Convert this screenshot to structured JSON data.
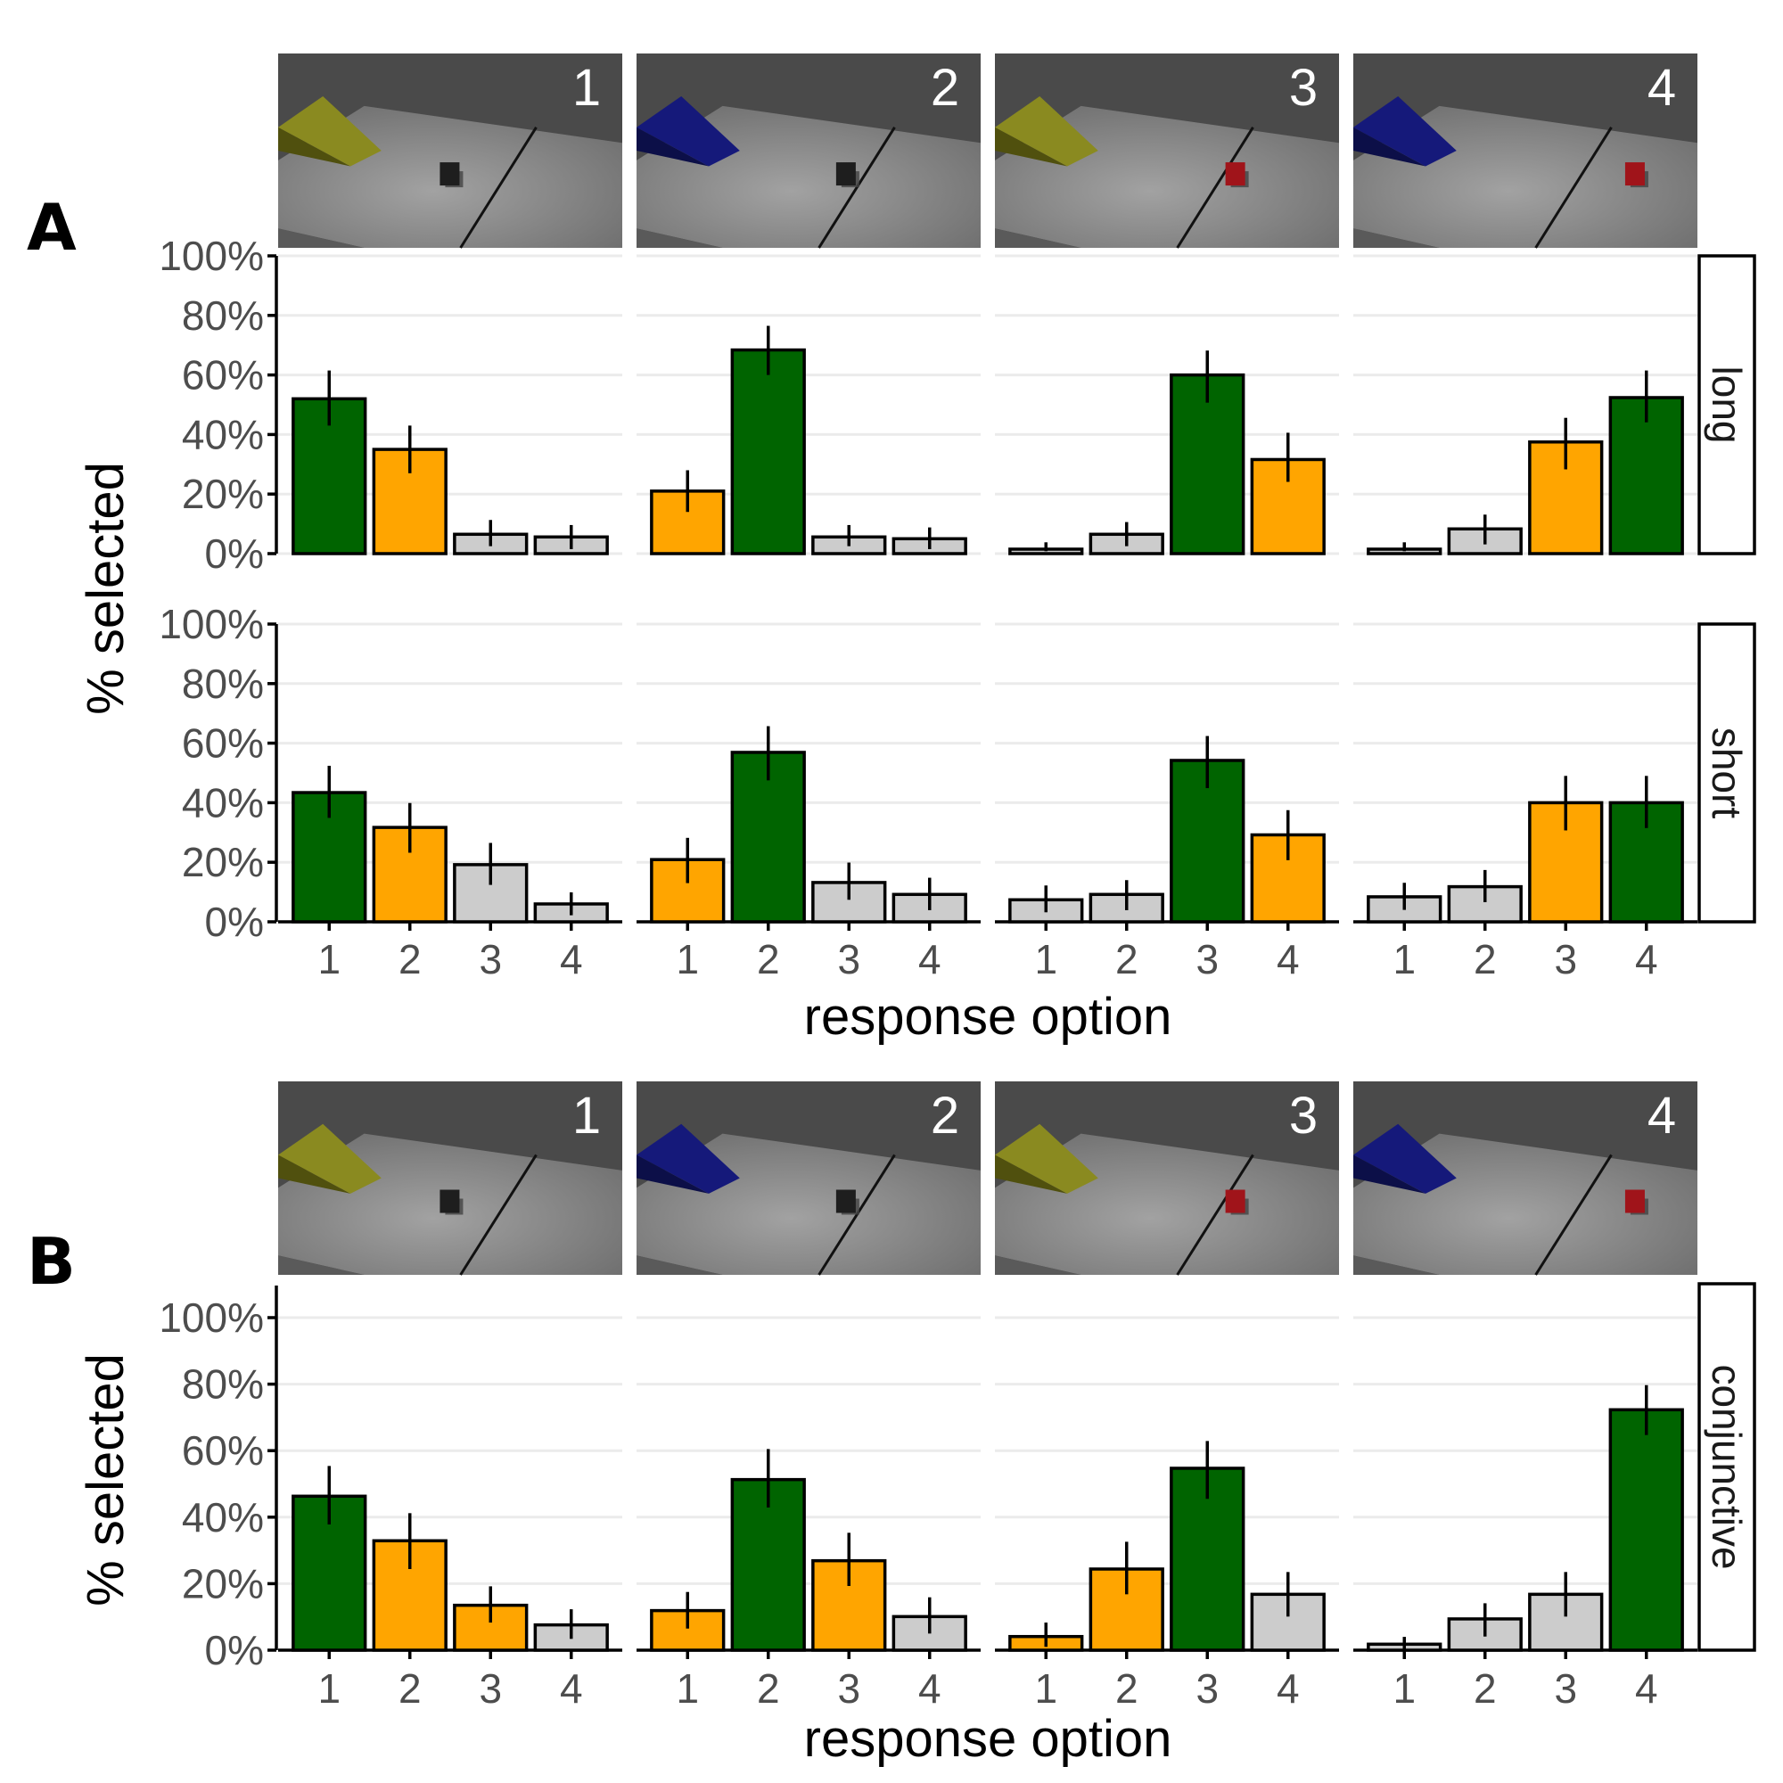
{
  "figure": {
    "section_labels": [
      "A",
      "B"
    ],
    "colors": {
      "correct": "#006400",
      "alternative": "#FFA500",
      "other": "#CCCCCC",
      "thumb_sky": "#4a4a4a",
      "ramp_yellow": "#8a8a20",
      "ramp_blue": "#15197a",
      "block_black": "#1e1e1e",
      "block_red": "#a0141a"
    },
    "thumbnails": [
      {
        "number": "1",
        "ramp": "yellow",
        "block": "black"
      },
      {
        "number": "2",
        "ramp": "blue",
        "block": "black"
      },
      {
        "number": "3",
        "ramp": "yellow",
        "block": "red"
      },
      {
        "number": "4",
        "ramp": "blue",
        "block": "red"
      }
    ]
  },
  "chart_data": [
    {
      "type": "bar",
      "section": "A",
      "ylabel": "% selected",
      "xlabel": "response option",
      "ylim": [
        0,
        100
      ],
      "yticks": [
        "0%",
        "20%",
        "40%",
        "60%",
        "80%",
        "100%"
      ],
      "categories": [
        "1",
        "2",
        "3",
        "4"
      ],
      "grid": true,
      "facets": [
        {
          "row": "long",
          "panels": [
            {
              "panel": "1",
              "values": [
                52,
                35,
                6.5,
                5.6
              ],
              "err_low": [
                43,
                27,
                2.5,
                1.5
              ],
              "err_high": [
                61.5,
                43,
                11.3,
                9.6
              ],
              "fill": [
                "correct",
                "alternative",
                "other",
                "other"
              ]
            },
            {
              "panel": "2",
              "values": [
                21,
                68.4,
                5.6,
                5
              ],
              "err_low": [
                14,
                60,
                2.5,
                1.5
              ],
              "err_high": [
                28,
                76.5,
                9.6,
                8.8
              ],
              "fill": [
                "alternative",
                "correct",
                "other",
                "other"
              ]
            },
            {
              "panel": "3",
              "values": [
                1.5,
                6.5,
                60,
                31.6
              ],
              "err_low": [
                0.8,
                2.5,
                50.7,
                24.1
              ],
              "err_high": [
                3.8,
                10.6,
                68.2,
                40.6
              ],
              "fill": [
                "other",
                "other",
                "correct",
                "alternative"
              ]
            },
            {
              "panel": "4",
              "values": [
                1.5,
                8.3,
                37.5,
                52.4
              ],
              "err_low": [
                0.8,
                3.1,
                28.3,
                44.1
              ],
              "err_high": [
                3.8,
                13.1,
                45.6,
                61.5
              ],
              "fill": [
                "other",
                "other",
                "alternative",
                "correct"
              ]
            }
          ]
        },
        {
          "row": "short",
          "panels": [
            {
              "panel": "1",
              "values": [
                43.4,
                31.7,
                19.2,
                6
              ],
              "err_low": [
                34.9,
                23.2,
                12.4,
                2.2
              ],
              "err_high": [
                52.4,
                39.9,
                26.5,
                9.9
              ],
              "fill": [
                "correct",
                "alternative",
                "other",
                "other"
              ]
            },
            {
              "panel": "2",
              "values": [
                20.9,
                56.9,
                13.2,
                9.2
              ],
              "err_low": [
                13,
                47.5,
                7.4,
                3.9
              ],
              "err_high": [
                28.2,
                65.7,
                19.9,
                14.8
              ],
              "fill": [
                "alternative",
                "correct",
                "other",
                "other"
              ]
            },
            {
              "panel": "3",
              "values": [
                7.4,
                9.2,
                54.2,
                29.2
              ],
              "err_low": [
                3.2,
                3.9,
                44.9,
                20.7
              ],
              "err_high": [
                12.2,
                14,
                62.4,
                37.5
              ],
              "fill": [
                "other",
                "other",
                "correct",
                "alternative"
              ]
            },
            {
              "panel": "4",
              "values": [
                8.4,
                11.8,
                40,
                40
              ],
              "err_low": [
                4,
                6.6,
                30.7,
                31.5
              ],
              "err_high": [
                13.1,
                17.4,
                49,
                49
              ],
              "fill": [
                "other",
                "other",
                "alternative",
                "correct"
              ]
            }
          ]
        }
      ]
    },
    {
      "type": "bar",
      "section": "B",
      "ylabel": "% selected",
      "xlabel": "response option",
      "ylim": [
        0,
        110
      ],
      "yticks": [
        "0%",
        "20%",
        "40%",
        "60%",
        "80%",
        "100%"
      ],
      "categories": [
        "1",
        "2",
        "3",
        "4"
      ],
      "grid": true,
      "facets": [
        {
          "row": "conjunctive",
          "panels": [
            {
              "panel": "1",
              "values": [
                46.3,
                32.9,
                13.5,
                7.6
              ],
              "err_low": [
                37.8,
                24.4,
                8.3,
                3.4
              ],
              "err_high": [
                55.4,
                41.2,
                19.2,
                12.3
              ],
              "fill": [
                "correct",
                "alternative",
                "alternative",
                "other"
              ]
            },
            {
              "panel": "2",
              "values": [
                11.9,
                51.3,
                26.9,
                10.1
              ],
              "err_low": [
                6.5,
                42.9,
                19.3,
                5
              ],
              "err_high": [
                17.5,
                60.5,
                35.3,
                15.9
              ],
              "fill": [
                "alternative",
                "correct",
                "alternative",
                "other"
              ]
            },
            {
              "panel": "3",
              "values": [
                4.1,
                24.4,
                54.7,
                16.8
              ],
              "err_low": [
                1,
                16.8,
                45.5,
                10.1
              ],
              "err_high": [
                8.3,
                32.6,
                62.9,
                23.5
              ],
              "fill": [
                "alternative",
                "alternative",
                "correct",
                "other"
              ]
            },
            {
              "panel": "4",
              "values": [
                1.8,
                9.4,
                16.8,
                72.3
              ],
              "err_low": [
                0.4,
                4.1,
                10.1,
                64.7
              ],
              "err_high": [
                4,
                14.1,
                23.5,
                79.7
              ],
              "fill": [
                "other",
                "other",
                "other",
                "correct"
              ]
            }
          ]
        }
      ]
    }
  ]
}
